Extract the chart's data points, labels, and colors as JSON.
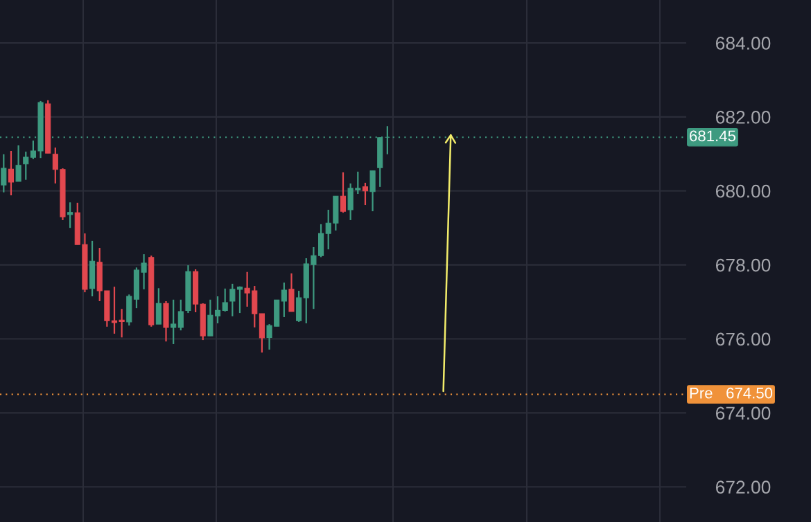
{
  "chart_data": {
    "type": "candlestick",
    "categories": [
      null,
      null,
      null,
      null,
      null,
      null,
      null,
      null,
      null,
      null,
      null,
      null,
      null,
      null,
      null,
      null,
      null,
      null,
      null,
      null,
      null,
      null,
      null,
      null,
      null,
      null,
      null,
      null,
      null,
      null,
      null,
      null,
      null,
      null,
      null,
      null,
      null,
      null,
      null,
      null,
      null,
      null,
      null,
      null,
      null,
      null,
      null,
      null,
      null,
      null,
      null,
      null,
      null,
      null,
      null,
      null,
      null,
      null,
      null,
      null,
      null,
      null,
      null,
      null,
      null,
      null,
      null,
      null,
      null,
      null,
      null,
      null,
      null,
      null,
      null,
      null,
      null,
      null,
      null,
      null,
      null,
      null,
      null,
      null,
      null,
      null,
      null,
      null,
      null,
      null,
      null,
      null,
      null
    ],
    "ohlc": [
      [
        680.16,
        680.99,
        679.96,
        680.61
      ],
      [
        680.59,
        681.08,
        679.88,
        680.24
      ],
      [
        680.26,
        681.23,
        680.26,
        680.69
      ],
      [
        680.73,
        681.06,
        680.3,
        680.91
      ],
      [
        680.91,
        681.36,
        680.86,
        681.08
      ],
      [
        681.08,
        682.43,
        680.89,
        682.39
      ],
      [
        682.35,
        682.45,
        681.02,
        681.02
      ],
      [
        680.99,
        681.17,
        680.2,
        680.58
      ],
      [
        680.58,
        680.61,
        679.21,
        679.3
      ],
      [
        679.36,
        679.69,
        679.0,
        679.42
      ],
      [
        679.41,
        679.68,
        678.55,
        678.55
      ],
      [
        678.55,
        678.85,
        677.26,
        677.34
      ],
      [
        677.36,
        678.65,
        677.15,
        678.1
      ],
      [
        678.07,
        678.46,
        677.02,
        677.3
      ],
      [
        677.3,
        677.3,
        676.33,
        676.49
      ],
      [
        676.49,
        677.41,
        676.14,
        676.44
      ],
      [
        676.51,
        676.81,
        676.04,
        676.47
      ],
      [
        676.46,
        677.2,
        676.36,
        677.15
      ],
      [
        677.07,
        677.93,
        676.83,
        677.86
      ],
      [
        677.8,
        678.29,
        677.34,
        678.05
      ],
      [
        678.2,
        678.25,
        676.33,
        676.38
      ],
      [
        676.4,
        677.37,
        676.4,
        676.96
      ],
      [
        676.96,
        677.02,
        675.93,
        676.31
      ],
      [
        676.31,
        677.06,
        675.86,
        676.4
      ],
      [
        676.31,
        677.06,
        676.23,
        676.74
      ],
      [
        676.77,
        677.99,
        676.7,
        677.82
      ],
      [
        677.82,
        677.88,
        676.72,
        676.94
      ],
      [
        676.94,
        676.96,
        675.97,
        676.08
      ],
      [
        676.08,
        677.06,
        676.08,
        676.64
      ],
      [
        676.62,
        677.15,
        676.42,
        676.77
      ],
      [
        676.77,
        677.36,
        676.74,
        676.98
      ],
      [
        677.02,
        677.49,
        676.61,
        677.34
      ],
      [
        677.34,
        677.42,
        676.7,
        677.4
      ],
      [
        677.37,
        677.81,
        676.87,
        677.24
      ],
      [
        677.3,
        677.43,
        676.31,
        676.68
      ],
      [
        676.68,
        676.68,
        675.63,
        676.03
      ],
      [
        676.04,
        676.4,
        675.71,
        676.36
      ],
      [
        676.34,
        677.05,
        676.34,
        677.05
      ],
      [
        677.02,
        677.52,
        676.59,
        677.32
      ],
      [
        677.34,
        677.77,
        676.74,
        676.74
      ],
      [
        676.49,
        677.3,
        676.46,
        677.11
      ],
      [
        677.11,
        678.18,
        676.42,
        678.03
      ],
      [
        678.01,
        678.48,
        676.81,
        678.25
      ],
      [
        678.25,
        679.1,
        678.21,
        678.85
      ],
      [
        678.85,
        679.49,
        678.42,
        679.13
      ],
      [
        679.13,
        679.86,
        678.93,
        679.86
      ],
      [
        679.86,
        680.5,
        679.41,
        679.45
      ],
      [
        679.49,
        680.2,
        679.21,
        680.07
      ],
      [
        680.03,
        680.52,
        679.92,
        680.07
      ],
      [
        680.11,
        680.22,
        679.62,
        680.0
      ],
      [
        679.98,
        680.54,
        679.45,
        680.54
      ],
      [
        680.63,
        681.45,
        680.11,
        681.44
      ],
      [
        681.45,
        681.75,
        680.99,
        681.45
      ],
      null,
      null,
      null,
      null,
      null,
      null,
      null,
      null,
      null,
      null,
      null,
      null,
      null,
      null,
      null,
      null,
      null,
      null,
      null,
      null,
      null,
      null,
      null,
      null,
      null,
      null,
      null,
      null,
      null,
      null,
      null,
      null,
      null,
      null,
      null,
      null,
      null,
      null,
      null,
      null
    ],
    "colors": [
      "#3e9a80",
      "#e2484f",
      "#3e9a80",
      "#3e9a80",
      "#3e9a80",
      "#3e9a80",
      "#e2484f",
      "#e2484f",
      "#e2484f",
      "#3e9a80",
      "#e2484f",
      "#e2484f",
      "#3e9a80",
      "#e2484f",
      "#e2484f",
      "#e2484f",
      "#e2484f",
      "#3e9a80",
      "#3e9a80",
      "#3e9a80",
      "#e2484f",
      "#3e9a80",
      "#e2484f",
      "#3e9a80",
      "#3e9a80",
      "#3e9a80",
      "#e2484f",
      "#e2484f",
      "#3e9a80",
      "#3e9a80",
      "#3e9a80",
      "#3e9a80",
      "#3e9a80",
      "#e2484f",
      "#e2484f",
      "#e2484f",
      "#3e9a80",
      "#3e9a80",
      "#3e9a80",
      "#e2484f",
      "#3e9a80",
      "#3e9a80",
      "#3e9a80",
      "#3e9a80",
      "#3e9a80",
      "#3e9a80",
      "#e2484f",
      "#3e9a80",
      "#3e9a80",
      "#e2484f",
      "#3e9a80",
      "#3e9a80",
      "#3e9a80",
      null,
      null,
      null,
      null,
      null,
      null,
      null,
      null,
      null,
      null,
      null,
      null,
      null,
      null,
      null,
      null,
      null,
      null,
      null,
      null,
      null,
      null,
      null,
      null,
      null,
      null,
      null,
      null,
      null,
      null,
      null,
      null,
      null,
      null,
      null,
      null,
      null,
      null,
      null,
      null
    ],
    "ylim": [
      671.05,
      685.16
    ],
    "yticks": [
      {
        "value": 672,
        "label": "672.00"
      },
      {
        "value": 674,
        "label": "674.00"
      },
      {
        "value": 676,
        "label": "676.00"
      },
      {
        "value": 678,
        "label": "678.00"
      },
      {
        "value": 680,
        "label": "680.00"
      },
      {
        "value": 682,
        "label": "682.00"
      },
      {
        "value": 684,
        "label": "684.00"
      }
    ],
    "tick_labels": "y",
    "grid": true,
    "ref_lines": [
      {
        "axis": "y",
        "value": 681.45,
        "label": "681.45",
        "color": "#3e9a80",
        "line_style": "dotted"
      },
      {
        "axis": "y",
        "value": 674.5,
        "label": "Pre   674.50",
        "color": "#f0923a",
        "line_style": "dotted"
      }
    ]
  }
}
